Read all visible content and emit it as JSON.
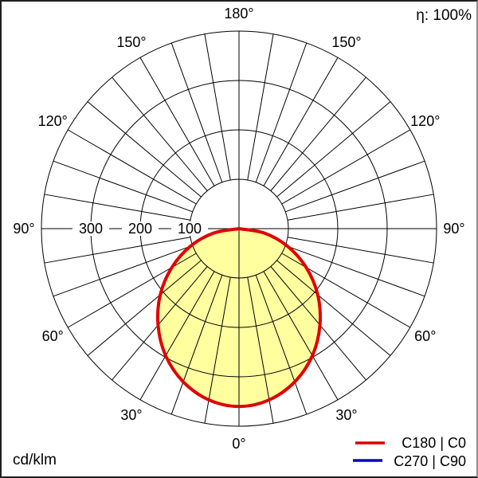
{
  "titles": {
    "efficiency": "η: 100%",
    "unit": "cd/klm"
  },
  "legend": {
    "entries": [
      {
        "label": "C180 | C0",
        "color": "#e10000"
      },
      {
        "label": "C270 | C90",
        "color": "#0000d2"
      }
    ]
  },
  "chart_data": {
    "type": "polar",
    "subtype": "luminous-intensity-distribution",
    "unit": "cd/klm",
    "efficiency_percent": 100,
    "radial_axis": {
      "circles": [
        100,
        200,
        300,
        400
      ],
      "tick_labels": [
        "300",
        "200",
        "100"
      ],
      "max": 400
    },
    "angle_labels": [
      "0°",
      "30°",
      "60°",
      "90°",
      "120°",
      "150°",
      "180°"
    ],
    "grid_angle_step_deg": 10,
    "fill_color": "#ffffa0",
    "grid_color": "#000000",
    "series": [
      {
        "name": "C180 | C0",
        "color": "#e10000",
        "angles_deg": [
          -90,
          -80,
          -70,
          -60,
          -50,
          -40,
          -30,
          -20,
          -10,
          0,
          10,
          20,
          30,
          40,
          50,
          60,
          70,
          80,
          90
        ],
        "values_cd_per_klm": [
          0,
          53,
          105,
          157,
          208,
          255,
          297,
          330,
          352,
          360,
          352,
          330,
          297,
          255,
          208,
          157,
          105,
          53,
          0
        ]
      },
      {
        "name": "C270 | C90",
        "color": "#0000d2",
        "angles_deg": [
          -90,
          -80,
          -70,
          -60,
          -50,
          -40,
          -30,
          -20,
          -10,
          0,
          10,
          20,
          30,
          40,
          50,
          60,
          70,
          80,
          90
        ],
        "values_cd_per_klm": [
          0,
          53,
          105,
          157,
          208,
          255,
          297,
          330,
          352,
          360,
          352,
          330,
          297,
          255,
          208,
          157,
          105,
          53,
          0
        ]
      }
    ]
  }
}
